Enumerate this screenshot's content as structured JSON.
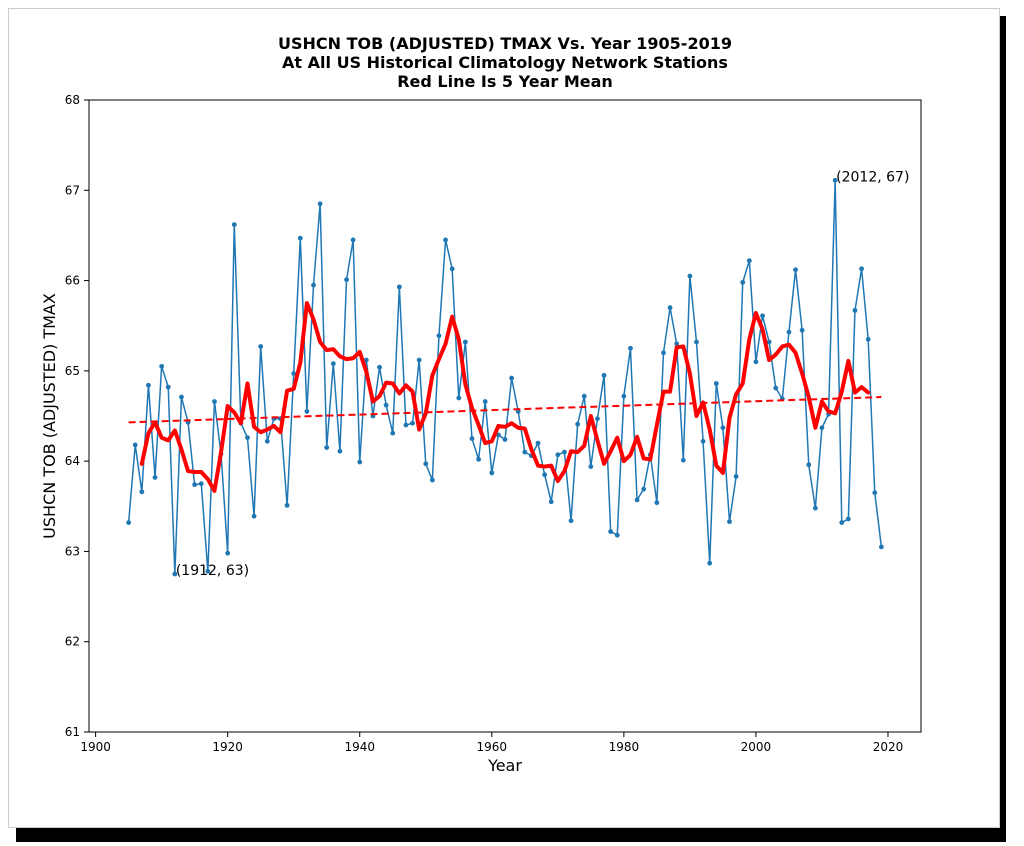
{
  "chart_data": {
    "type": "line",
    "title": [
      "USHCN TOB (ADJUSTED) TMAX Vs. Year 1905-2019",
      "At All US Historical Climatology Network Stations",
      "Red Line Is 5 Year Mean"
    ],
    "xlabel": "Year",
    "ylabel": "USHCN TOB (ADJUSTED) TMAX",
    "xlim": [
      1899,
      2025
    ],
    "ylim": [
      61,
      68
    ],
    "xticks": [
      1900,
      1920,
      1940,
      1960,
      1980,
      2000,
      2020
    ],
    "yticks": [
      61,
      62,
      63,
      64,
      65,
      66,
      67,
      68
    ],
    "grid": false,
    "series": [
      {
        "color": "#1f77b4",
        "style": "line-with-markers",
        "x": [
          1905,
          1906,
          1907,
          1908,
          1909,
          1910,
          1911,
          1912,
          1913,
          1914,
          1915,
          1916,
          1917,
          1918,
          1919,
          1920,
          1921,
          1922,
          1923,
          1924,
          1925,
          1926,
          1927,
          1928,
          1929,
          1930,
          1931,
          1932,
          1933,
          1934,
          1935,
          1936,
          1937,
          1938,
          1939,
          1940,
          1941,
          1942,
          1943,
          1944,
          1945,
          1946,
          1947,
          1948,
          1949,
          1950,
          1951,
          1952,
          1953,
          1954,
          1955,
          1956,
          1957,
          1958,
          1959,
          1960,
          1961,
          1962,
          1963,
          1964,
          1965,
          1966,
          1967,
          1968,
          1969,
          1970,
          1971,
          1972,
          1973,
          1974,
          1975,
          1976,
          1977,
          1978,
          1979,
          1980,
          1981,
          1982,
          1983,
          1984,
          1985,
          1986,
          1987,
          1988,
          1989,
          1990,
          1991,
          1992,
          1993,
          1994,
          1995,
          1996,
          1997,
          1998,
          1999,
          2000,
          2001,
          2002,
          2003,
          2004,
          2005,
          2006,
          2007,
          2008,
          2009,
          2010,
          2011,
          2012,
          2013,
          2014,
          2015,
          2016,
          2017,
          2018,
          2019
        ],
        "y": [
          63.32,
          64.18,
          63.66,
          64.84,
          63.82,
          65.05,
          64.82,
          62.75,
          64.71,
          64.43,
          63.74,
          63.75,
          62.78,
          64.66,
          64.08,
          62.98,
          66.62,
          64.42,
          64.26,
          63.39,
          65.27,
          64.22,
          64.47,
          64.47,
          63.51,
          64.97,
          66.47,
          64.55,
          65.95,
          66.85,
          64.15,
          65.08,
          64.11,
          66.01,
          66.45,
          63.99,
          65.12,
          64.5,
          65.04,
          64.62,
          64.31,
          65.93,
          64.4,
          64.42,
          65.12,
          63.97,
          63.79,
          65.39,
          66.45,
          66.13,
          64.7,
          65.32,
          64.25,
          64.02,
          64.66,
          63.87,
          64.29,
          64.24,
          64.92,
          64.55,
          64.1,
          64.06,
          64.2,
          63.85,
          63.55,
          64.07,
          64.1,
          63.34,
          64.41,
          64.72,
          63.94,
          64.47,
          64.95,
          63.22,
          63.18,
          64.72,
          65.25,
          63.57,
          63.69,
          64.07,
          63.54,
          65.2,
          65.7,
          65.3,
          64.01,
          66.05,
          65.32,
          64.22,
          62.87,
          64.86,
          64.37,
          63.33,
          63.83,
          65.98,
          66.22,
          65.1,
          65.61,
          65.32,
          64.81,
          64.69,
          65.43,
          66.12,
          65.45,
          63.96,
          63.48,
          64.37,
          64.52,
          67.11,
          63.32,
          63.36,
          65.67,
          66.13,
          65.35,
          63.65,
          63.05
        ]
      },
      {
        "color": "#ff0000",
        "style": "thick-line",
        "x": [
          1907,
          1908,
          1909,
          1910,
          1911,
          1912,
          1913,
          1914,
          1915,
          1916,
          1917,
          1918,
          1919,
          1920,
          1921,
          1922,
          1923,
          1924,
          1925,
          1926,
          1927,
          1928,
          1929,
          1930,
          1931,
          1932,
          1933,
          1934,
          1935,
          1936,
          1937,
          1938,
          1939,
          1940,
          1941,
          1942,
          1943,
          1944,
          1945,
          1946,
          1947,
          1948,
          1949,
          1950,
          1951,
          1952,
          1953,
          1954,
          1955,
          1956,
          1957,
          1958,
          1959,
          1960,
          1961,
          1962,
          1963,
          1964,
          1965,
          1966,
          1967,
          1968,
          1969,
          1970,
          1971,
          1972,
          1973,
          1974,
          1975,
          1976,
          1977,
          1978,
          1979,
          1980,
          1981,
          1982,
          1983,
          1984,
          1985,
          1986,
          1987,
          1988,
          1989,
          1990,
          1991,
          1992,
          1993,
          1994,
          1995,
          1996,
          1997,
          1998,
          1999,
          2000,
          2001,
          2002,
          2003,
          2004,
          2005,
          2006,
          2007,
          2008,
          2009,
          2010,
          2011,
          2012,
          2013,
          2014,
          2015,
          2016,
          2017
        ],
        "y": [
          63.97,
          64.31,
          64.43,
          64.26,
          64.23,
          64.34,
          64.13,
          63.89,
          63.88,
          63.88,
          63.8,
          63.67,
          64.1,
          64.61,
          64.54,
          64.42,
          64.86,
          64.38,
          64.32,
          64.35,
          64.39,
          64.32,
          64.78,
          64.8,
          65.09,
          65.75,
          65.57,
          65.32,
          65.23,
          65.24,
          65.16,
          65.13,
          65.14,
          65.21,
          64.99,
          64.66,
          64.72,
          64.87,
          64.86,
          64.75,
          64.84,
          64.77,
          64.35,
          64.53,
          64.95,
          65.13,
          65.3,
          65.6,
          65.35,
          64.85,
          64.59,
          64.4,
          64.2,
          64.22,
          64.39,
          64.38,
          64.42,
          64.37,
          64.36,
          64.13,
          63.95,
          63.94,
          63.95,
          63.78,
          63.89,
          64.11,
          64.1,
          64.17,
          64.5,
          64.23,
          63.97,
          64.11,
          64.26,
          64.0,
          64.07,
          64.27,
          64.03,
          64.02,
          64.4,
          64.77,
          64.77,
          65.26,
          65.27,
          64.97,
          64.5,
          64.65,
          64.35,
          63.95,
          63.87,
          64.48,
          64.74,
          64.86,
          65.35,
          65.64,
          65.46,
          65.12,
          65.18,
          65.27,
          65.29,
          65.2,
          64.97,
          64.71,
          64.37,
          64.66,
          64.55,
          64.53,
          64.77,
          65.11,
          64.76,
          64.82,
          64.76
        ]
      },
      {
        "color": "#ff0000",
        "style": "dashed-trend",
        "x": [
          1905,
          2019
        ],
        "y": [
          64.43,
          64.71
        ]
      }
    ],
    "annotations": [
      {
        "text": "(1912, 63)",
        "x": 1912,
        "y": 62.75
      },
      {
        "text": "(2012, 67)",
        "x": 2012,
        "y": 67.11
      }
    ]
  }
}
